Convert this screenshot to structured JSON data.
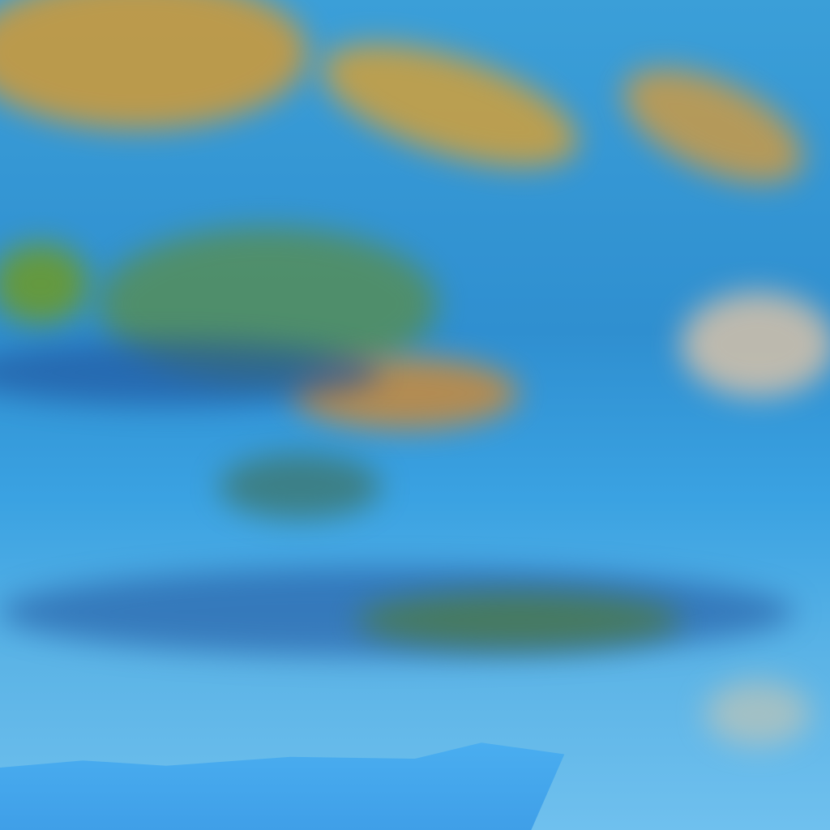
{
  "image": {
    "kind": "false-color satellite imagery of cloud cover over sea and land",
    "colors": {
      "sea_cloud_blue": "#3aa2e2",
      "dark_band": "#1f4f9a",
      "orange_cloud": "#d89a3a",
      "green_cloud": "#4e9a3a",
      "pale_cloud": "#e8c8a8",
      "land_blue": "#4aaef0"
    }
  }
}
